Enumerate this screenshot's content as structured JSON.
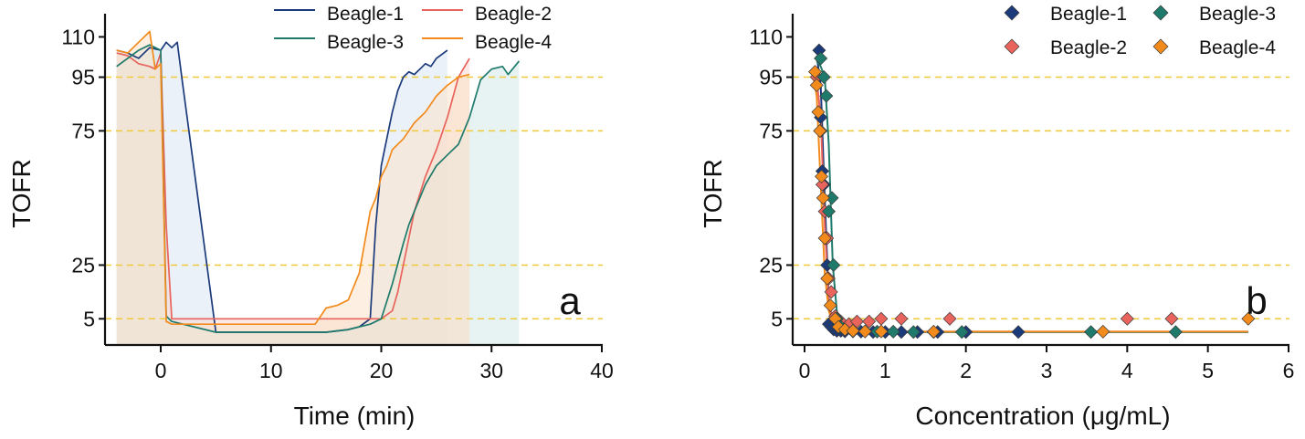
{
  "chart_data": [
    {
      "type": "line",
      "panel_label": "a",
      "xlabel": "Time (min)",
      "ylabel": "TOFR",
      "xlim": [
        -5,
        40
      ],
      "ylim": [
        0,
        120
      ],
      "xticks": [
        0,
        10,
        20,
        30,
        40
      ],
      "yticks": [
        5,
        25,
        75,
        95,
        110
      ],
      "hlines": [
        5,
        25,
        75,
        95
      ],
      "grid": false,
      "legend_position": "top",
      "fill_under_lines": true,
      "series": [
        {
          "name": "Beagle-1",
          "color": "#1b3a7a",
          "fill": "#dbe6f2",
          "x": [
            -4,
            -3,
            -2,
            -1,
            0,
            0.5,
            1,
            1.5,
            2,
            5,
            10,
            15,
            17,
            18,
            19,
            19.5,
            20,
            20.5,
            21,
            21.5,
            22,
            22.5,
            23,
            23.5,
            24,
            24.5,
            25,
            26
          ],
          "y": [
            105,
            104,
            102,
            106,
            105,
            108,
            106,
            108,
            92,
            0,
            0,
            0,
            1,
            2,
            5,
            40,
            62,
            72,
            82,
            90,
            95,
            97,
            96,
            98,
            100,
            99,
            102,
            105
          ]
        },
        {
          "name": "Beagle-2",
          "color": "#e8645c",
          "fill": "#f7d9d4",
          "x": [
            -4,
            -3,
            -2,
            -1,
            -0.5,
            0,
            0.5,
            1,
            5,
            10,
            14,
            17,
            19,
            20,
            21,
            21.5,
            22,
            22.5,
            23,
            24,
            25,
            25.5,
            26,
            27,
            28
          ],
          "y": [
            104,
            103,
            100,
            99,
            98,
            104,
            40,
            5,
            5,
            5,
            5,
            5,
            5,
            5,
            8,
            15,
            25,
            35,
            45,
            58,
            68,
            74,
            80,
            95,
            102
          ]
        },
        {
          "name": "Beagle-3",
          "color": "#1f7a6b",
          "fill": "#d3eaea",
          "x": [
            -4,
            -3,
            -2,
            -1,
            0,
            0.5,
            1,
            5,
            10,
            15,
            17,
            19,
            20,
            21,
            22,
            22.5,
            23,
            24,
            25,
            26,
            27,
            28,
            29,
            30,
            31,
            31.5,
            32.5
          ],
          "y": [
            99,
            102,
            105,
            107,
            105,
            6,
            4,
            0,
            0,
            0,
            1,
            3,
            5,
            18,
            33,
            40,
            45,
            55,
            62,
            66,
            70,
            80,
            94,
            98,
            99,
            96,
            101
          ]
        },
        {
          "name": "Beagle-4",
          "color": "#f28a1c",
          "fill": "#fbe1c8",
          "x": [
            -4,
            -3,
            -2,
            -1,
            -0.5,
            0,
            0.5,
            1,
            5,
            10,
            14,
            15,
            16,
            17,
            18,
            19,
            19.5,
            20,
            20.5,
            21,
            22,
            23,
            24,
            25,
            26,
            27,
            28
          ],
          "y": [
            105,
            104,
            108,
            112,
            98,
            100,
            4,
            3,
            3,
            3,
            3,
            9,
            10,
            12,
            22,
            45,
            50,
            58,
            62,
            68,
            72,
            78,
            82,
            88,
            92,
            95,
            96
          ]
        }
      ]
    },
    {
      "type": "scatter",
      "panel_label": "b",
      "xlabel": "Concentration (μg/mL)",
      "ylabel": "TOFR",
      "xlim": [
        -0.1,
        6
      ],
      "ylim": [
        0,
        120
      ],
      "xticks": [
        0,
        1,
        2,
        3,
        4,
        5,
        6
      ],
      "yticks": [
        5,
        25,
        75,
        95,
        110
      ],
      "hlines": [
        5,
        25,
        75,
        95
      ],
      "grid": false,
      "legend_position": "top-right",
      "marker": "diamond",
      "fit_curves": true,
      "series": [
        {
          "name": "Beagle-1",
          "color": "#1b3a7a",
          "x": [
            0.18,
            0.2,
            0.22,
            0.24,
            0.26,
            0.28,
            0.3,
            0.33,
            0.36,
            0.4,
            0.45,
            0.5,
            0.6,
            0.7,
            0.85,
            1.0,
            1.2,
            1.4,
            1.65,
            2.0,
            2.65
          ],
          "y": [
            105,
            80,
            60,
            55,
            35,
            25,
            3,
            2,
            1,
            0.5,
            0.5,
            0.3,
            0.3,
            0.2,
            0.1,
            0.1,
            0.1,
            0.1,
            0.1,
            0.1,
            0.1
          ],
          "fit_x": [
            0.15,
            0.2,
            0.25,
            0.3,
            0.35,
            0.4,
            0.5,
            0.7,
            1.0,
            2.0,
            3.0,
            4.0,
            5.0,
            5.5
          ],
          "fit_y": [
            103,
            92,
            50,
            12,
            3,
            1,
            0.3,
            0.1,
            0.1,
            0.1,
            0.1,
            0.1,
            0.1,
            0.1
          ]
        },
        {
          "name": "Beagle-2",
          "color": "#e8645c",
          "x": [
            0.15,
            0.2,
            0.22,
            0.25,
            0.28,
            0.3,
            0.33,
            0.38,
            0.45,
            0.55,
            0.65,
            0.8,
            0.95,
            1.2,
            1.8,
            4.0,
            4.55
          ],
          "y": [
            95,
            75,
            55,
            45,
            35,
            20,
            15,
            6,
            4,
            3,
            4,
            4,
            5,
            5,
            5,
            5,
            5
          ],
          "fit_x": [
            0.15,
            0.2,
            0.25,
            0.3,
            0.35,
            0.4,
            0.5,
            0.7,
            1.0,
            2.0,
            3.0,
            4.0,
            5.0,
            5.5
          ],
          "fit_y": [
            94,
            80,
            40,
            12,
            4,
            1.5,
            0.5,
            0.3,
            0.2,
            0.2,
            0.2,
            0.2,
            0.2,
            0.2
          ]
        },
        {
          "name": "Beagle-3",
          "color": "#1f7a6b",
          "x": [
            0.2,
            0.24,
            0.27,
            0.3,
            0.34,
            0.36,
            0.4,
            0.45,
            0.5,
            0.6,
            0.75,
            0.9,
            1.1,
            1.35,
            1.6,
            1.95,
            3.55,
            4.6
          ],
          "y": [
            102,
            95,
            88,
            45,
            50,
            25,
            5,
            2,
            1,
            0.5,
            0.3,
            0.2,
            0.2,
            0.1,
            0.1,
            0.1,
            0.1,
            0.1
          ],
          "fit_x": [
            0.15,
            0.2,
            0.25,
            0.3,
            0.35,
            0.4,
            0.45,
            0.5,
            0.7,
            1.0,
            2.0,
            3.0,
            4.0,
            5.0,
            5.5
          ],
          "fit_y": [
            101,
            99,
            95,
            70,
            25,
            8,
            3,
            1,
            0.2,
            0.1,
            0.1,
            0.1,
            0.1,
            0.1,
            0.1
          ]
        },
        {
          "name": "Beagle-4",
          "color": "#f28a1c",
          "x": [
            0.13,
            0.15,
            0.17,
            0.19,
            0.21,
            0.23,
            0.25,
            0.28,
            0.32,
            0.38,
            0.42,
            0.5,
            0.6,
            0.75,
            0.95,
            1.6,
            3.7,
            5.5
          ],
          "y": [
            97,
            92,
            82,
            75,
            58,
            50,
            35,
            20,
            10,
            5,
            2,
            1,
            0.5,
            0.3,
            0.3,
            0.2,
            0.2,
            5
          ],
          "fit_x": [
            0.1,
            0.15,
            0.2,
            0.25,
            0.3,
            0.35,
            0.4,
            0.5,
            0.7,
            1.0,
            2.0,
            3.0,
            4.0,
            5.0,
            5.5
          ],
          "fit_y": [
            97,
            88,
            55,
            22,
            8,
            3,
            1.2,
            0.5,
            0.3,
            0.2,
            0.2,
            0.2,
            0.2,
            0.2,
            0.2
          ]
        }
      ]
    }
  ]
}
